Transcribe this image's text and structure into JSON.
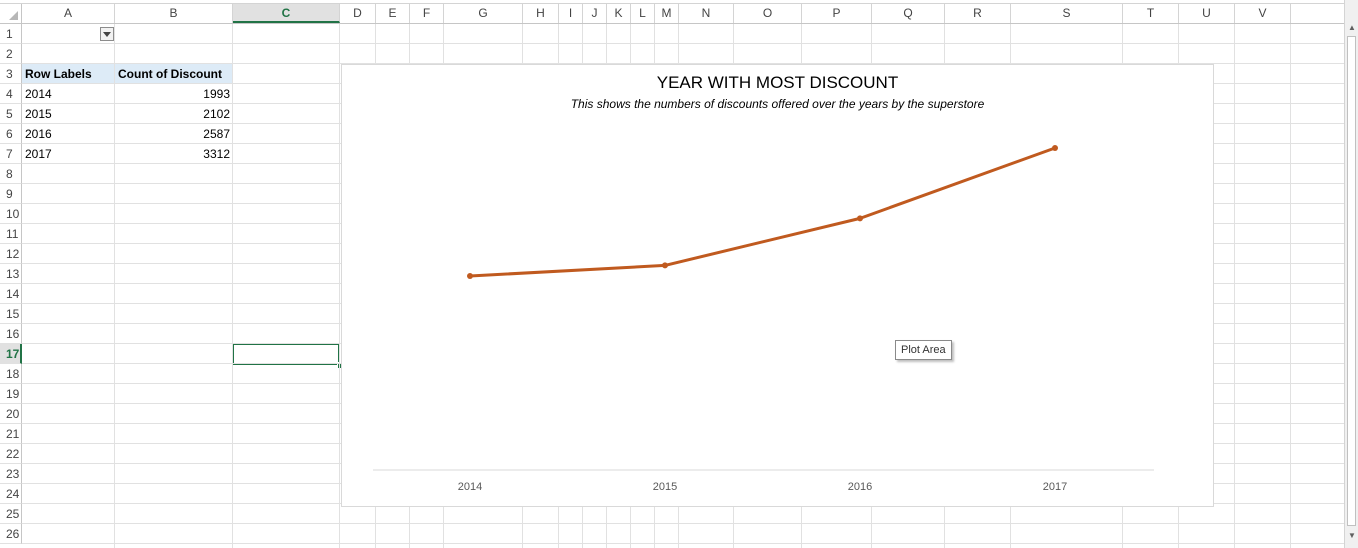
{
  "columns": [
    "A",
    "B",
    "C",
    "D",
    "E",
    "F",
    "G",
    "H",
    "I",
    "J",
    "K",
    "L",
    "M",
    "N",
    "O",
    "P",
    "Q",
    "R",
    "S",
    "T",
    "U",
    "V"
  ],
  "rows": [
    "1",
    "2",
    "3",
    "4",
    "5",
    "6",
    "7",
    "8",
    "9",
    "10",
    "11",
    "12",
    "13",
    "14",
    "15",
    "16",
    "17",
    "18",
    "19",
    "20",
    "21",
    "22",
    "23",
    "24",
    "25",
    "26"
  ],
  "selected_column": "C",
  "selected_row": "17",
  "pivot": {
    "header_row_labels": "Row Labels",
    "header_count": "Count of Discount",
    "rows": [
      {
        "label": "2014",
        "value": "1993"
      },
      {
        "label": "2015",
        "value": "2102"
      },
      {
        "label": "2016",
        "value": "2587"
      },
      {
        "label": "2017",
        "value": "3312"
      }
    ]
  },
  "chart": {
    "tooltip": "Plot Area",
    "line_color": "#c05a1f"
  },
  "chart_data": {
    "type": "line",
    "title": "YEAR WITH MOST DISCOUNT",
    "subtitle": "This shows the numbers of discounts offered over the years by the superstore",
    "categories": [
      "2014",
      "2015",
      "2016",
      "2017"
    ],
    "values": [
      1993,
      2102,
      2587,
      3312
    ],
    "xlabel": "",
    "ylabel": "",
    "grid": false,
    "legend": "none"
  }
}
